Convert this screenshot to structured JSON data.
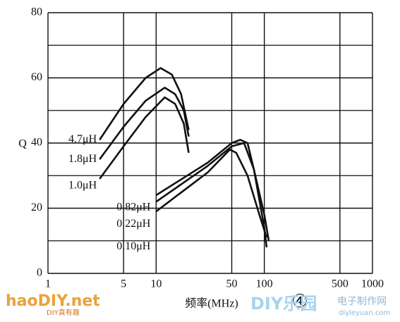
{
  "chart_data": {
    "type": "line",
    "x_label": "频率(MHz)",
    "y_label": "Q",
    "log_x": true,
    "grid": true,
    "xlim": [
      1,
      1000
    ],
    "xticks": [
      1,
      5,
      10,
      50,
      100,
      500,
      1000
    ],
    "ylim": [
      0,
      80
    ],
    "yticks": [
      0,
      20,
      40,
      60,
      80
    ],
    "series": [
      {
        "name": "4.7μH",
        "color": "#111111",
        "x": [
          3,
          5,
          8,
          11,
          14,
          17,
          20
        ],
        "values": [
          41,
          52,
          60,
          63,
          61,
          55,
          44
        ]
      },
      {
        "name": "1.8μH",
        "color": "#111111",
        "x": [
          3,
          5,
          8,
          12,
          15,
          18,
          20
        ],
        "values": [
          35,
          45,
          53,
          57,
          55,
          50,
          42
        ]
      },
      {
        "name": "1.0μH",
        "color": "#111111",
        "x": [
          3,
          5,
          8,
          12,
          15,
          18,
          20
        ],
        "values": [
          29,
          39,
          48,
          54,
          52,
          46,
          37
        ]
      },
      {
        "name": "0.82μH",
        "color": "#111111",
        "x": [
          10,
          30,
          50,
          60,
          70,
          80,
          100,
          110
        ],
        "values": [
          24,
          34,
          40,
          41,
          40,
          32,
          18,
          10
        ]
      },
      {
        "name": "0.22μH",
        "color": "#111111",
        "x": [
          10,
          30,
          50,
          65,
          80,
          100,
          105
        ],
        "values": [
          22,
          33,
          39,
          40,
          32,
          14,
          8
        ]
      },
      {
        "name": "0.10μH",
        "color": "#111111",
        "x": [
          10,
          30,
          48,
          55,
          70,
          90,
          105
        ],
        "values": [
          19,
          31,
          38,
          37,
          30,
          18,
          11
        ]
      }
    ],
    "annotations": [
      "④"
    ]
  },
  "watermarks": [
    "haoDIY.net",
    "DIY真有趣",
    "DIY乐园",
    "电子制作网",
    "diyleyuan.com"
  ]
}
